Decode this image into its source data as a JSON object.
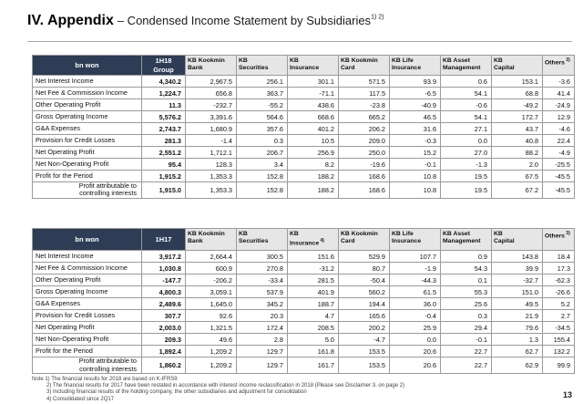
{
  "page": {
    "title": "IV. Appendix",
    "subtitle": "– Condensed Income Statement by Subsidiaries",
    "title_sup": "1) 2)",
    "page_number": "13"
  },
  "colors": {
    "header_navy": "#2e3c55",
    "header_gray": "#e6e6e6"
  },
  "tables": [
    {
      "unit_label": "bn won",
      "period_label": "1H18\nGroup",
      "columns": [
        {
          "text": "KB Kookmin\nBank",
          "sup": ""
        },
        {
          "text": "KB\nSecurities",
          "sup": ""
        },
        {
          "text": "KB\nInsurance",
          "sup": ""
        },
        {
          "text": "KB Kookmin\nCard",
          "sup": ""
        },
        {
          "text": "KB Life\nInsurance",
          "sup": ""
        },
        {
          "text": "KB Asset\nManagement",
          "sup": ""
        },
        {
          "text": "KB\nCapital",
          "sup": ""
        },
        {
          "text": "Others",
          "sup": "3)"
        }
      ],
      "rows": [
        {
          "label": "Net Interest Income",
          "indent": false,
          "values": [
            "4,340.2",
            "2,967.5",
            "256.1",
            "301.1",
            "571.5",
            "93.9",
            "0.6",
            "153.1",
            "-3.6"
          ]
        },
        {
          "label": "Net Fee & Commission Income",
          "indent": false,
          "values": [
            "1,224.7",
            "656.8",
            "363.7",
            "-71.1",
            "117.5",
            "-6.5",
            "54.1",
            "68.8",
            "41.4"
          ]
        },
        {
          "label": "Other Operating Profit",
          "indent": false,
          "values": [
            "11.3",
            "-232.7",
            "-55.2",
            "438.6",
            "-23.8",
            "-40.9",
            "-0.6",
            "-49.2",
            "-24.9"
          ]
        },
        {
          "label": "Gross Operating Income",
          "indent": false,
          "values": [
            "5,576.2",
            "3,391.6",
            "564.6",
            "668.6",
            "665.2",
            "46.5",
            "54.1",
            "172.7",
            "12.9"
          ]
        },
        {
          "label": "G&A Expenses",
          "indent": false,
          "values": [
            "2,743.7",
            "1,680.9",
            "357.6",
            "401.2",
            "206.2",
            "31.6",
            "27.1",
            "43.7",
            "-4.6"
          ]
        },
        {
          "label": "Provision for Credit Losses",
          "indent": false,
          "values": [
            "281.3",
            "-1.4",
            "0.3",
            "10.5",
            "209.0",
            "-0.3",
            "0.0",
            "40.8",
            "22.4"
          ]
        },
        {
          "label": "Net Operating Profit",
          "indent": false,
          "values": [
            "2,551.2",
            "1,712.1",
            "206.7",
            "256.9",
            "250.0",
            "15.2",
            "27.0",
            "88.2",
            "-4.9"
          ]
        },
        {
          "label": "Net Non-Operating Profit",
          "indent": false,
          "values": [
            "95.4",
            "128.3",
            "3.4",
            "8.2",
            "-19.6",
            "-0.1",
            "-1.3",
            "2.0",
            "-25.5"
          ]
        },
        {
          "label": "Profit for the Period",
          "indent": false,
          "values": [
            "1,915.2",
            "1,353.3",
            "152.8",
            "188.2",
            "168.6",
            "10.8",
            "19.5",
            "67.5",
            "-45.5"
          ]
        },
        {
          "label": "Profit attributable to controlling interests",
          "indent": true,
          "values": [
            "1,915.0",
            "1,353.3",
            "152.8",
            "188.2",
            "168.6",
            "10.8",
            "19.5",
            "67.2",
            "-45.5"
          ]
        }
      ]
    },
    {
      "unit_label": "bn won",
      "period_label": "1H17",
      "columns": [
        {
          "text": "KB Kookmin\nBank",
          "sup": ""
        },
        {
          "text": "KB\nSecurities",
          "sup": ""
        },
        {
          "text": "KB\nInsurance",
          "sup": "4)"
        },
        {
          "text": "KB Kookmin\nCard",
          "sup": ""
        },
        {
          "text": "KB Life\nInsurance",
          "sup": ""
        },
        {
          "text": "KB Asset\nManagement",
          "sup": ""
        },
        {
          "text": "KB\nCapital",
          "sup": ""
        },
        {
          "text": "Others",
          "sup": "3)"
        }
      ],
      "rows": [
        {
          "label": "Net Interest Income",
          "indent": false,
          "values": [
            "3,917.2",
            "2,664.4",
            "300.5",
            "151.6",
            "529.9",
            "107.7",
            "0.9",
            "143.8",
            "18.4"
          ]
        },
        {
          "label": "Net Fee & Commission Income",
          "indent": false,
          "values": [
            "1,030.8",
            "600.9",
            "270.8",
            "-31.2",
            "80.7",
            "-1.9",
            "54.3",
            "39.9",
            "17.3"
          ]
        },
        {
          "label": "Other Operating Profit",
          "indent": false,
          "values": [
            "-147.7",
            "-206.2",
            "-33.4",
            "281.5",
            "-50.4",
            "-44.3",
            "0.1",
            "-32.7",
            "-62.3"
          ]
        },
        {
          "label": "Gross Operating Income",
          "indent": false,
          "values": [
            "4,800.3",
            "3,059.1",
            "537.9",
            "401.9",
            "560.2",
            "61.5",
            "55.3",
            "151.0",
            "-26.6"
          ]
        },
        {
          "label": "G&A Expenses",
          "indent": false,
          "values": [
            "2,489.6",
            "1,645.0",
            "345.2",
            "188.7",
            "194.4",
            "36.0",
            "25.6",
            "49.5",
            "5.2"
          ]
        },
        {
          "label": "Provision for Credit Losses",
          "indent": false,
          "values": [
            "307.7",
            "92.6",
            "20.3",
            "4.7",
            "165.6",
            "-0.4",
            "0.3",
            "21.9",
            "2.7"
          ]
        },
        {
          "label": "Net Operating Profit",
          "indent": false,
          "values": [
            "2,003.0",
            "1,321.5",
            "172.4",
            "208.5",
            "200.2",
            "25.9",
            "29.4",
            "79.6",
            "-34.5"
          ]
        },
        {
          "label": "Net Non-Operating Profit",
          "indent": false,
          "values": [
            "209.3",
            "49.6",
            "2.8",
            "5.0",
            "-4.7",
            "0.0",
            "-0.1",
            "1.3",
            "155.4"
          ]
        },
        {
          "label": "Profit for the Period",
          "indent": false,
          "values": [
            "1,892.4",
            "1,209.2",
            "129.7",
            "161.8",
            "153.5",
            "20.6",
            "22.7",
            "62.7",
            "132.2"
          ]
        },
        {
          "label": "Profit attributable to controlling interests",
          "indent": true,
          "values": [
            "1,860.2",
            "1,209.2",
            "129.7",
            "161.7",
            "153.5",
            "20.6",
            "22.7",
            "62.9",
            "99.9"
          ]
        }
      ]
    }
  ],
  "notes": [
    "Note 1) The financial results for 2018 are based on K-IFRS9",
    "2) The financial results for 2017 have been restated in accordance with interest income reclassification in 2018 (Please see Disclaimer 3. on page 2)",
    "3) Including financial results of the holding company, the other subsidiaries and adjustment for consolidation",
    "4) Consolidated since 2Q17"
  ]
}
